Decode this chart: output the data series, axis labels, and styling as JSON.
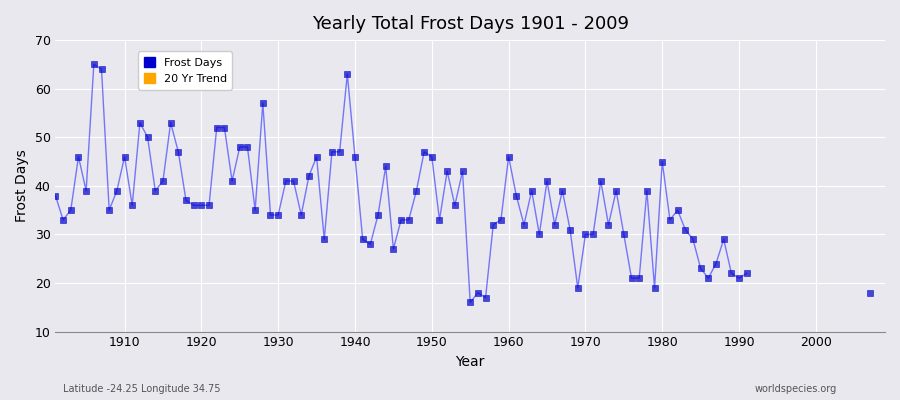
{
  "title": "Yearly Total Frost Days 1901 - 2009",
  "xlabel": "Year",
  "ylabel": "Frost Days",
  "lat_lon_label": "Latitude -24.25 Longitude 34.75",
  "source_label": "worldspecies.org",
  "xlim": [
    1901,
    2009
  ],
  "ylim": [
    10,
    70
  ],
  "yticks": [
    10,
    20,
    30,
    40,
    50,
    60,
    70
  ],
  "xticks": [
    1910,
    1920,
    1930,
    1940,
    1950,
    1960,
    1970,
    1980,
    1990,
    2000
  ],
  "line_color": "#4444ff",
  "line_alpha": 0.7,
  "marker_color": "#0000cc",
  "marker_size": 4,
  "background_color": "#e8e8ee",
  "grid_color": "#ffffff",
  "legend_frost_color": "#0000cc",
  "legend_trend_color": "#ffa500",
  "frost_days": {
    "years": [
      1901,
      1902,
      1903,
      1904,
      1905,
      1906,
      1907,
      1908,
      1909,
      1910,
      1911,
      1912,
      1913,
      1914,
      1915,
      1916,
      1917,
      1918,
      1919,
      1920,
      1921,
      1922,
      1923,
      1924,
      1925,
      1926,
      1927,
      1928,
      1929,
      1930,
      1931,
      1932,
      1933,
      1934,
      1935,
      1936,
      1937,
      1938,
      1939,
      1940,
      1941,
      1942,
      1943,
      1944,
      1945,
      1946,
      1947,
      1948,
      1949,
      1950,
      1951,
      1952,
      1953,
      1954,
      1955,
      1956,
      1957,
      1958,
      1959,
      1960,
      1961,
      1962,
      1963,
      1964,
      1965,
      1966,
      1967,
      1968,
      1969,
      1970,
      1971,
      1972,
      1973,
      1974,
      1975,
      1976,
      1977,
      1978,
      1979,
      1980,
      1981,
      1982,
      1983,
      1984,
      1985,
      1986,
      1987,
      1988,
      1989,
      1990,
      1991,
      1992,
      1993,
      1994,
      1995,
      1996,
      1997,
      1998,
      1999,
      2000,
      2001,
      2002,
      2003,
      2004,
      2005,
      2006,
      2007,
      2008,
      2009
    ],
    "values": [
      38,
      33,
      35,
      46,
      39,
      65,
      64,
      35,
      39,
      46,
      36,
      53,
      50,
      39,
      41,
      53,
      47,
      37,
      36,
      36,
      36,
      52,
      52,
      41,
      48,
      48,
      35,
      57,
      34,
      34,
      41,
      41,
      34,
      42,
      46,
      29,
      47,
      47,
      63,
      46,
      29,
      28,
      34,
      44,
      27,
      33,
      33,
      39,
      47,
      46,
      33,
      43,
      36,
      43,
      16,
      18,
      17,
      32,
      33,
      46,
      38,
      32,
      39,
      30,
      41,
      32,
      39,
      31,
      19,
      30,
      30,
      41,
      32,
      39,
      30,
      21,
      21,
      39,
      19,
      45,
      33,
      35,
      31,
      29,
      23,
      21,
      24,
      29,
      22,
      21,
      22,
      null,
      null,
      null,
      null,
      null,
      null,
      null,
      null,
      null,
      null,
      null,
      null,
      null,
      null,
      null,
      18,
      null,
      null
    ]
  }
}
